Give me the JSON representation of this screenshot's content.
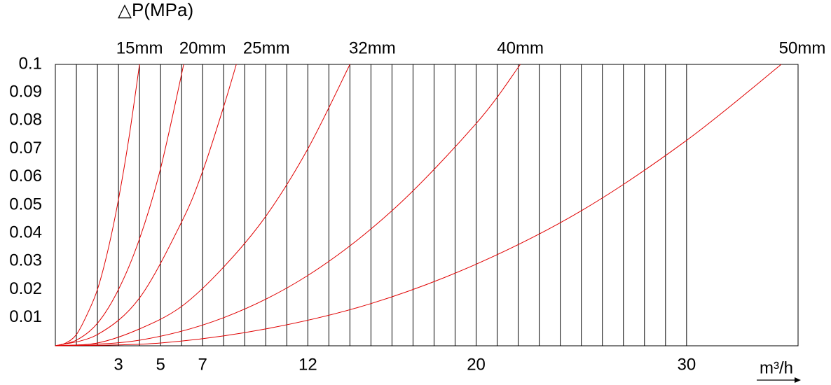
{
  "chart_data": {
    "type": "line",
    "title": "△P(MPa)",
    "x_label": "m³/h",
    "xlim": [
      0,
      35.3
    ],
    "ylim": [
      0,
      0.1
    ],
    "xticks": [
      3,
      5,
      7,
      12,
      20,
      30
    ],
    "xgrid": [
      1,
      2,
      3,
      4,
      5,
      6,
      7,
      8,
      9,
      10,
      11,
      12,
      13,
      14,
      15,
      16,
      17,
      18,
      19,
      20,
      21,
      22,
      23,
      24,
      25,
      26,
      27,
      28,
      29,
      30
    ],
    "yticks": [
      0.01,
      0.02,
      0.03,
      0.04,
      0.05,
      0.06,
      0.07,
      0.08,
      0.09,
      0.1
    ],
    "series": [
      {
        "name": "15mm",
        "color": "#e00000",
        "x": [
          0,
          0.5,
          1,
          1.5,
          2,
          2.5,
          3,
          3.5,
          4
        ],
        "values": [
          0,
          0.001,
          0.004,
          0.011,
          0.02,
          0.034,
          0.052,
          0.074,
          0.1
        ]
      },
      {
        "name": "20mm",
        "color": "#e00000",
        "x": [
          0,
          1,
          2,
          3,
          4,
          5,
          6.1
        ],
        "values": [
          0,
          0.002,
          0.008,
          0.02,
          0.038,
          0.063,
          0.1
        ]
      },
      {
        "name": "25mm",
        "color": "#e00000",
        "x": [
          0,
          2,
          4,
          6,
          7,
          8,
          8.6
        ],
        "values": [
          0,
          0.004,
          0.017,
          0.044,
          0.062,
          0.085,
          0.1
        ]
      },
      {
        "name": "32mm",
        "color": "#e00000",
        "x": [
          0,
          2,
          4,
          6,
          8,
          10,
          12,
          14
        ],
        "values": [
          0,
          0.001,
          0.006,
          0.014,
          0.028,
          0.046,
          0.07,
          0.1
        ]
      },
      {
        "name": "40mm",
        "color": "#e00000",
        "x": [
          0,
          4,
          8,
          12,
          16,
          20,
          22.1
        ],
        "values": [
          0,
          0.002,
          0.01,
          0.025,
          0.048,
          0.079,
          0.1
        ]
      },
      {
        "name": "50mm",
        "color": "#e00000",
        "x": [
          0,
          5,
          10,
          15,
          20,
          25,
          30,
          34.5
        ],
        "values": [
          0,
          0.001,
          0.006,
          0.015,
          0.029,
          0.048,
          0.073,
          0.1
        ]
      }
    ]
  }
}
